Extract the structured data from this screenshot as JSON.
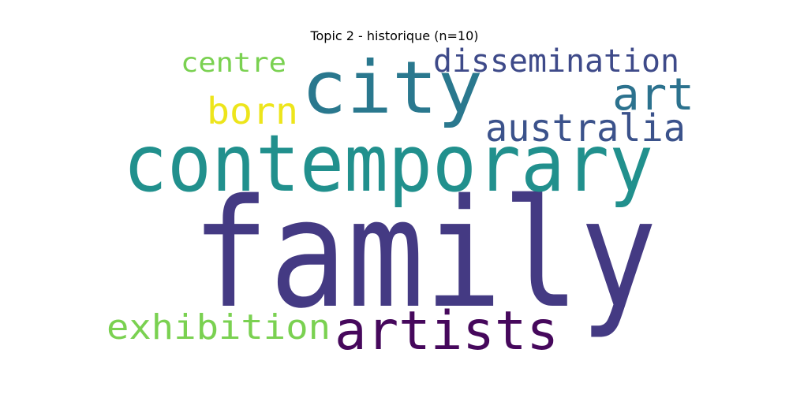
{
  "chart_data": {
    "type": "wordcloud",
    "title": "Topic 2 - historique (n=10)",
    "words": [
      {
        "text": "family",
        "weight": 1.0,
        "color": "#443a83"
      },
      {
        "text": "contemporary",
        "weight": 0.55,
        "color": "#21908d"
      },
      {
        "text": "city",
        "weight": 0.5,
        "color": "#2a788e"
      },
      {
        "text": "artists",
        "weight": 0.38,
        "color": "#46085c"
      },
      {
        "text": "australia",
        "weight": 0.25,
        "color": "#3b528b"
      },
      {
        "text": "dissemination",
        "weight": 0.24,
        "color": "#3e4a89"
      },
      {
        "text": "art",
        "weight": 0.3,
        "color": "#2c728e"
      },
      {
        "text": "born",
        "weight": 0.24,
        "color": "#ede51b"
      },
      {
        "text": "exhibition",
        "weight": 0.26,
        "color": "#7ad151"
      },
      {
        "text": "centre",
        "weight": 0.2,
        "color": "#7ad151"
      }
    ],
    "background": "#ffffff",
    "axes": "off"
  }
}
